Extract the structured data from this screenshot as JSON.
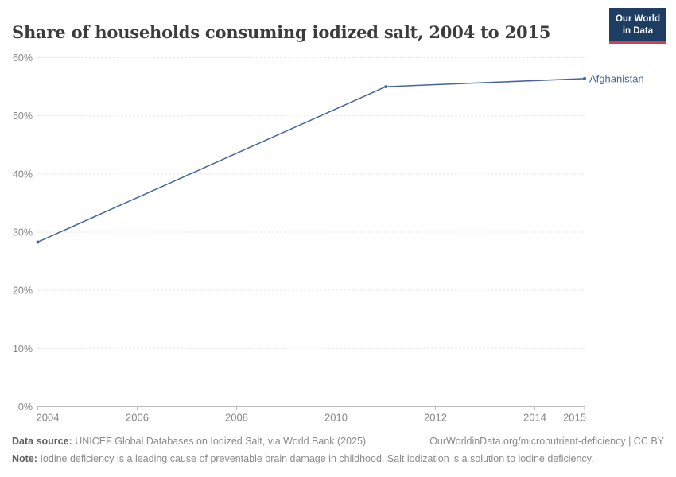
{
  "header": {
    "logo": {
      "line1": "Our World",
      "line2": "in Data",
      "bg_color": "#1d3d63",
      "accent_color": "#d73e4d"
    }
  },
  "chart_data": {
    "type": "line",
    "title": "Share of households consuming iodized salt, 2004 to 2015",
    "xlabel": "",
    "ylabel": "",
    "x": {
      "min": 2004,
      "max": 2015,
      "ticks": [
        2004,
        2006,
        2008,
        2010,
        2012,
        2014,
        2015
      ]
    },
    "y": {
      "min": 0,
      "max": 60,
      "ticks": [
        0,
        10,
        20,
        30,
        40,
        50,
        60
      ],
      "tick_format": "percent"
    },
    "grid": "horizontal-dashed",
    "legend_position": "end-of-line-label",
    "series": [
      {
        "name": "Afghanistan",
        "color": "#44639f",
        "points": [
          [
            2004,
            28.3
          ],
          [
            2011,
            55
          ],
          [
            2015,
            56.4
          ]
        ]
      }
    ]
  },
  "footer": {
    "data_source_label": "Data source:",
    "data_source": "UNICEF Global Databases on Iodized Salt, via World Bank (2025)",
    "attribution": "OurWorldinData.org/micronutrient-deficiency | CC BY",
    "note_label": "Note:",
    "note": "Iodine deficiency is a leading cause of preventable brain damage in childhood. Salt iodization is a solution to iodine deficiency."
  },
  "style_colors": {
    "grid": "#dedede",
    "axis": "#bcbcbc",
    "tick_label": "#858585",
    "title": "#3c3c3c"
  }
}
